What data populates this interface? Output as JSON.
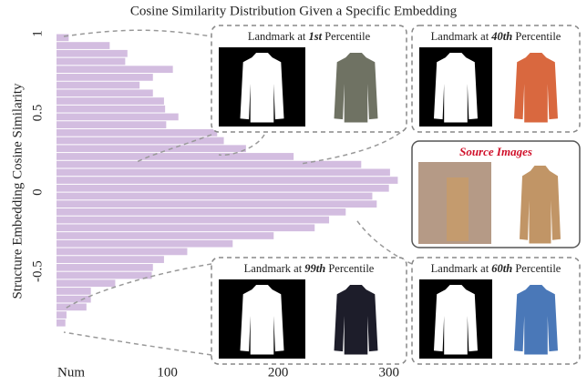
{
  "chart_data": {
    "type": "histogram",
    "orientation": "horizontal",
    "title": "Cosine Similarity Distribution Given a Specific Embedding",
    "ylabel": "Structure Embedding Cosine Similarity",
    "bins": [
      -0.85,
      -0.8,
      -0.75,
      -0.7,
      -0.65,
      -0.6,
      -0.55,
      -0.5,
      -0.45,
      -0.4,
      -0.35,
      -0.3,
      -0.25,
      -0.2,
      -0.15,
      -0.1,
      -0.05,
      0,
      0.05,
      0.1,
      0.15,
      0.2,
      0.25,
      0.3,
      0.35,
      0.4,
      0.45,
      0.5,
      0.55,
      0.6,
      0.65,
      0.7,
      0.75,
      0.8,
      0.85,
      0.9,
      0.95,
      1.0
    ],
    "counts": [
      8,
      9,
      27,
      31,
      31,
      53,
      86,
      87,
      97,
      118,
      159,
      196,
      233,
      246,
      261,
      289,
      285,
      300,
      308,
      301,
      275,
      214,
      171,
      151,
      145,
      99,
      110,
      98,
      97,
      87,
      75,
      87,
      105,
      62,
      64,
      48,
      11
    ],
    "color": "#d3bde0",
    "xlim": [
      0,
      320
    ],
    "xticks": [
      {
        "value": 0,
        "label": "Num"
      },
      100,
      200,
      300
    ],
    "ylim": [
      -0.97,
      1.0
    ],
    "yticks": [
      -0.5,
      0,
      0.5,
      1
    ],
    "panels": [
      {
        "prefix": "Landmark at ",
        "emph": "1st",
        "suffix": " Percentile"
      },
      {
        "prefix": "Landmark at ",
        "emph": "40th",
        "suffix": " Percentile"
      },
      {
        "prefix": "Landmark at ",
        "emph": "99th",
        "suffix": " Percentile"
      },
      {
        "prefix": "Landmark at ",
        "emph": "60th",
        "suffix": " Percentile"
      }
    ],
    "source_title": "Source Images"
  }
}
